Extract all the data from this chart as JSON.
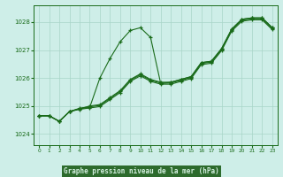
{
  "title": "Graphe pression niveau de la mer (hPa)",
  "background_color": "#ceeee8",
  "plot_bg_color": "#ceeee8",
  "grid_color": "#a8d5c8",
  "line_color": "#1a6b1a",
  "xlabel_bg": "#2d6b2d",
  "xlabel_text_color": "#d4f0e0",
  "xlim": [
    -0.5,
    23.5
  ],
  "ylim": [
    1023.6,
    1028.6
  ],
  "yticks": [
    1024,
    1025,
    1026,
    1027,
    1028
  ],
  "xticks": [
    0,
    1,
    2,
    3,
    4,
    5,
    6,
    7,
    8,
    9,
    10,
    11,
    12,
    13,
    14,
    15,
    16,
    17,
    18,
    19,
    20,
    21,
    22,
    23
  ],
  "line1": [
    1024.65,
    1024.65,
    1024.45,
    1024.8,
    1024.9,
    1024.95,
    1026.0,
    1026.7,
    1027.3,
    1027.7,
    1027.8,
    1027.45,
    1025.8,
    1025.85,
    1025.95,
    1026.05,
    1026.55,
    1026.6,
    1027.05,
    1027.75,
    1028.1,
    1028.15,
    1028.15,
    1027.8
  ],
  "line2": [
    1024.65,
    1024.65,
    1024.45,
    1024.8,
    1024.9,
    1025.0,
    1025.05,
    1025.3,
    1025.55,
    1025.95,
    1026.15,
    1025.95,
    1025.85,
    1025.85,
    1025.95,
    1026.05,
    1026.55,
    1026.6,
    1027.05,
    1027.75,
    1028.1,
    1028.15,
    1028.15,
    1027.8
  ],
  "line3": [
    1024.65,
    1024.65,
    1024.45,
    1024.8,
    1024.92,
    1024.97,
    1025.02,
    1025.27,
    1025.52,
    1025.92,
    1026.12,
    1025.92,
    1025.82,
    1025.82,
    1025.92,
    1026.02,
    1026.52,
    1026.57,
    1027.02,
    1027.72,
    1028.07,
    1028.12,
    1028.12,
    1027.77
  ],
  "line4": [
    1024.65,
    1024.65,
    1024.45,
    1024.8,
    1024.88,
    1024.93,
    1024.98,
    1025.23,
    1025.48,
    1025.88,
    1026.08,
    1025.88,
    1025.78,
    1025.78,
    1025.88,
    1025.98,
    1026.48,
    1026.53,
    1026.98,
    1027.68,
    1028.03,
    1028.08,
    1028.08,
    1027.73
  ]
}
